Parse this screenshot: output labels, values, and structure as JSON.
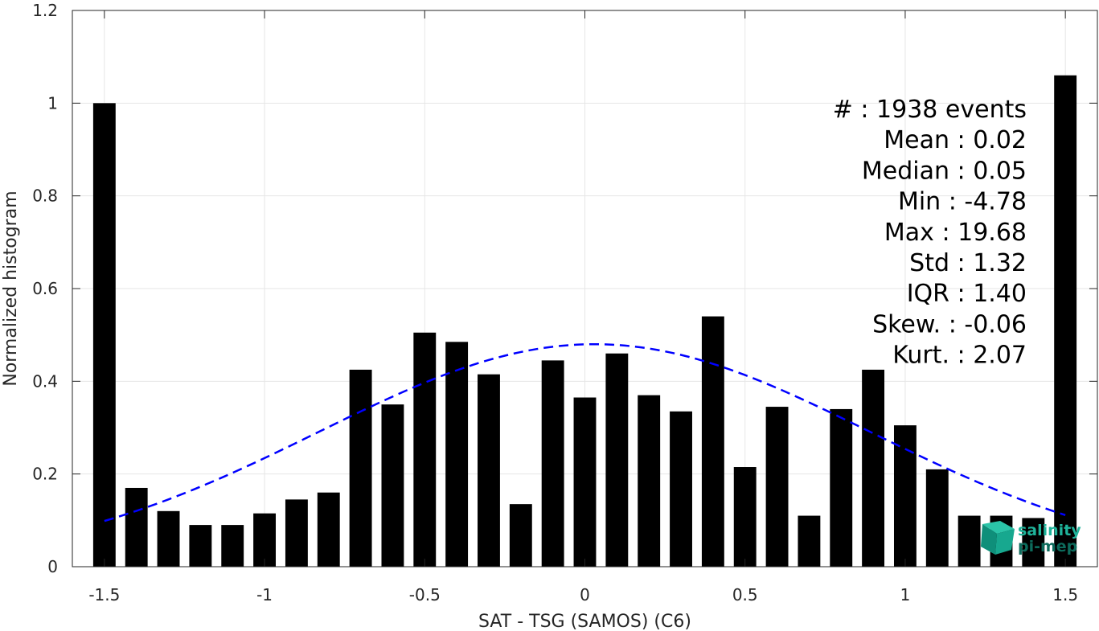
{
  "chart_data": {
    "type": "bar",
    "xlabel": "SAT - TSG (SAMOS) (C6)",
    "ylabel": "Normalized histogram",
    "xlim": [
      -1.6,
      1.6
    ],
    "ylim": [
      0,
      1.2
    ],
    "grid": true,
    "xticks": [
      -1.5,
      -1,
      -0.5,
      0,
      0.5,
      1,
      1.5
    ],
    "xtick_labels": [
      "-1.5",
      "-1",
      "-0.5",
      "0",
      "0.5",
      "1",
      "1.5"
    ],
    "yticks": [
      0,
      0.2,
      0.4,
      0.6,
      0.8,
      1,
      1.2
    ],
    "ytick_labels": [
      "0",
      "0.2",
      "0.4",
      "0.6",
      "0.8",
      "1",
      "1.2"
    ],
    "bar_width": 0.07,
    "bins": [
      -1.5,
      -1.4,
      -1.3,
      -1.2,
      -1.1,
      -1.0,
      -0.9,
      -0.8,
      -0.7,
      -0.6,
      -0.5,
      -0.4,
      -0.3,
      -0.2,
      -0.1,
      0.0,
      0.1,
      0.2,
      0.3,
      0.4,
      0.5,
      0.6,
      0.7,
      0.8,
      0.9,
      1.0,
      1.1,
      1.2,
      1.3,
      1.4,
      1.5
    ],
    "values": [
      1.0,
      0.17,
      0.12,
      0.09,
      0.09,
      0.115,
      0.145,
      0.16,
      0.425,
      0.35,
      0.505,
      0.485,
      0.415,
      0.135,
      0.445,
      0.365,
      0.46,
      0.37,
      0.335,
      0.54,
      0.215,
      0.345,
      0.11,
      0.34,
      0.425,
      0.305,
      0.21,
      0.11,
      0.11,
      0.105,
      1.06
    ],
    "bar_color": "#000000",
    "fit_curve": {
      "style": "dashed",
      "color": "#0000ff",
      "mean": 0.03,
      "std": 0.86,
      "peak": 0.48,
      "x_range": [
        -1.5,
        1.5
      ]
    },
    "stats": [
      {
        "label": "#  : 1938 events"
      },
      {
        "label": "Mean : 0.02"
      },
      {
        "label": "Median : 0.05"
      },
      {
        "label": "Min : -4.78"
      },
      {
        "label": "Max : 19.68"
      },
      {
        "label": "Std : 1.32"
      },
      {
        "label": "IQR : 1.40"
      },
      {
        "label": "Skew. : -0.06"
      },
      {
        "label": "Kurt. : 2.07"
      }
    ]
  },
  "logo": {
    "line1": "salinity",
    "line2": "pi-mep",
    "color1": "#1fb39a",
    "color2": "#0d6b5c"
  }
}
